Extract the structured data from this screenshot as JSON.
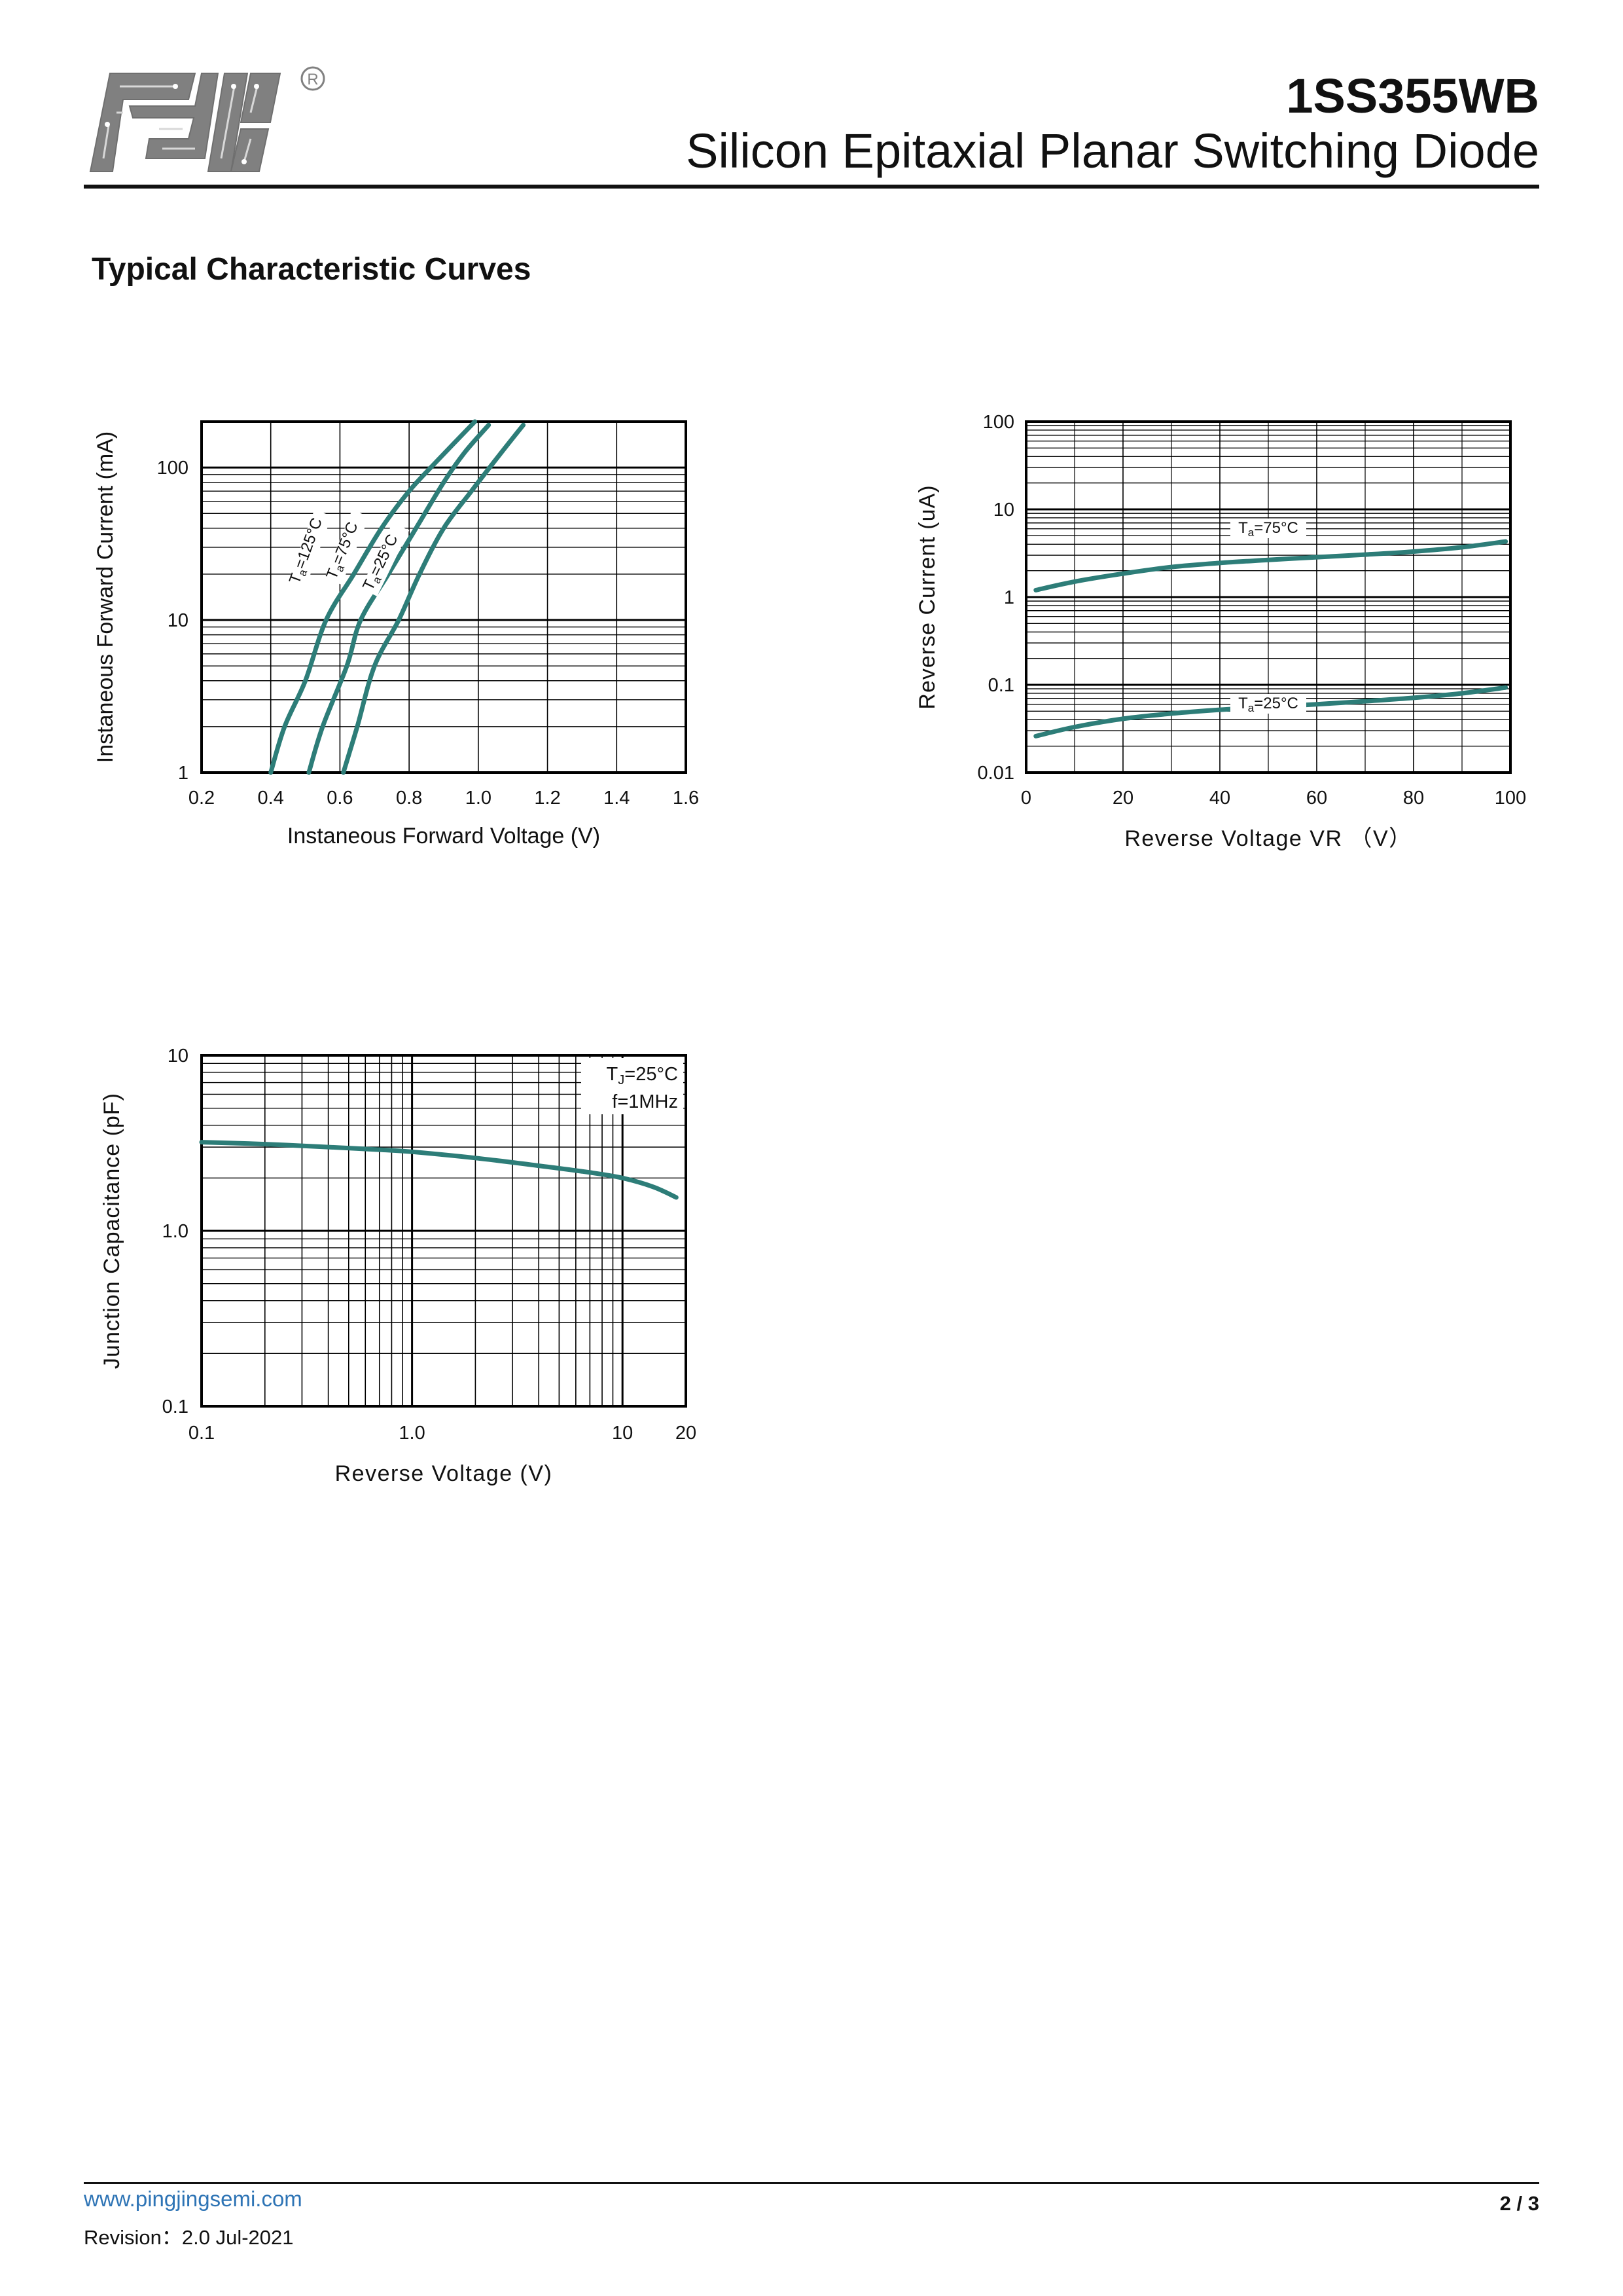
{
  "header": {
    "logo_mark": "PJ",
    "registered_mark": "®",
    "part_number": "1SS355WB",
    "subtitle": "Silicon Epitaxial Planar Switching Diode"
  },
  "section_title": "Typical Characteristic Curves",
  "colors": {
    "curve": "#2d7d78",
    "axis": "#000000",
    "grid": "#000000",
    "link": "#2e74b5",
    "logo": "#7f7f7f"
  },
  "chart_data": [
    {
      "type": "line",
      "xlabel": "Instaneous Forward Voltage (V)",
      "ylabel": "Instaneous Forward Current (mA)",
      "xscale": "linear",
      "yscale": "log",
      "xlim": [
        0.2,
        1.6
      ],
      "ylim": [
        1,
        200
      ],
      "x_ticks": [
        "0.2",
        "0.4",
        "0.6",
        "0.8",
        "1.0",
        "1.2",
        "1.4",
        "1.6"
      ],
      "y_ticks": [
        "1",
        "10",
        "100"
      ],
      "grid": true,
      "series": [
        {
          "name": "Ta=125°C",
          "label_rotation": -70,
          "points": [
            [
              0.4,
              1
            ],
            [
              0.44,
              2
            ],
            [
              0.5,
              4
            ],
            [
              0.56,
              10
            ],
            [
              0.64,
              20
            ],
            [
              0.72,
              40
            ],
            [
              0.8,
              70
            ],
            [
              0.88,
              110
            ],
            [
              0.99,
              200
            ]
          ]
        },
        {
          "name": "Ta=75°C",
          "label_rotation": -68,
          "points": [
            [
              0.51,
              1
            ],
            [
              0.55,
              2
            ],
            [
              0.62,
              5
            ],
            [
              0.66,
              10
            ],
            [
              0.74,
              20
            ],
            [
              0.82,
              40
            ],
            [
              0.9,
              80
            ],
            [
              0.96,
              125
            ],
            [
              1.03,
              190
            ]
          ]
        },
        {
          "name": "Ta=25°C",
          "label_rotation": -64,
          "points": [
            [
              0.61,
              1
            ],
            [
              0.65,
              2
            ],
            [
              0.7,
              5
            ],
            [
              0.77,
              10
            ],
            [
              0.83,
              20
            ],
            [
              0.9,
              40
            ],
            [
              0.98,
              70
            ],
            [
              1.06,
              120
            ],
            [
              1.13,
              190
            ]
          ]
        }
      ]
    },
    {
      "type": "line",
      "xlabel": "Reverse Voltage VR （V）",
      "ylabel": "Reverse Current (uA)",
      "xscale": "linear",
      "yscale": "log",
      "xlim": [
        0,
        100
      ],
      "ylim": [
        0.01,
        100
      ],
      "x_ticks": [
        "0",
        "20",
        "40",
        "60",
        "80",
        "100"
      ],
      "y_ticks": [
        "0.01",
        "0.1",
        "1",
        "10",
        "100"
      ],
      "grid": true,
      "series": [
        {
          "name": "Ta=75°C",
          "points": [
            [
              2,
              1.2
            ],
            [
              10,
              1.5
            ],
            [
              20,
              1.85
            ],
            [
              30,
              2.2
            ],
            [
              40,
              2.45
            ],
            [
              50,
              2.65
            ],
            [
              60,
              2.85
            ],
            [
              70,
              3.05
            ],
            [
              80,
              3.3
            ],
            [
              90,
              3.7
            ],
            [
              99,
              4.3
            ]
          ]
        },
        {
          "name": "Ta=25°C",
          "points": [
            [
              2,
              0.026
            ],
            [
              10,
              0.033
            ],
            [
              20,
              0.041
            ],
            [
              30,
              0.047
            ],
            [
              40,
              0.052
            ],
            [
              50,
              0.056
            ],
            [
              60,
              0.06
            ],
            [
              70,
              0.065
            ],
            [
              80,
              0.071
            ],
            [
              90,
              0.08
            ],
            [
              99,
              0.093
            ]
          ]
        }
      ]
    },
    {
      "type": "line",
      "xlabel": "Reverse  Voltage (V)",
      "ylabel": "Junction Capacitance (pF)",
      "xscale": "log",
      "yscale": "log",
      "xlim": [
        0.1,
        20
      ],
      "ylim": [
        0.1,
        10
      ],
      "x_ticks": [
        "0.1",
        "1.0",
        "10",
        "20"
      ],
      "y_ticks": [
        "0.1",
        "1.0",
        "10"
      ],
      "grid": true,
      "legend": {
        "position": "top-right",
        "lines": [
          "TJ=25°C",
          "f=1MHz"
        ]
      },
      "series": [
        {
          "name": "",
          "points": [
            [
              0.1,
              3.2
            ],
            [
              0.2,
              3.12
            ],
            [
              0.4,
              3.0
            ],
            [
              0.7,
              2.9
            ],
            [
              1,
              2.82
            ],
            [
              2,
              2.6
            ],
            [
              4,
              2.35
            ],
            [
              7,
              2.15
            ],
            [
              10,
              2.0
            ],
            [
              14,
              1.78
            ],
            [
              18,
              1.55
            ]
          ]
        }
      ]
    }
  ],
  "footer": {
    "url": "www.pingjingsemi.com",
    "revision": "Revision：2.0 Jul-2021",
    "page": "2 / 3"
  }
}
